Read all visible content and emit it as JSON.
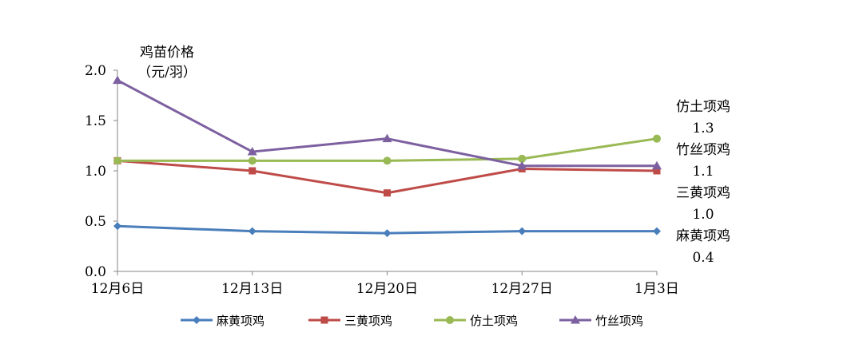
{
  "chart_data": {
    "type": "line",
    "title": "",
    "ylabel": [
      "鸡苗价格",
      "（元/羽）"
    ],
    "xlabel": "",
    "categories": [
      "12月6日",
      "12月13日",
      "12月20日",
      "12月27日",
      "1月3日"
    ],
    "ylim": [
      0,
      2.0
    ],
    "yticks": [
      "0.0",
      "0.5",
      "1.0",
      "1.5",
      "2.0"
    ],
    "grid": false,
    "legend_position": "bottom",
    "series": [
      {
        "name": "麻黄项鸡",
        "color": "#4a7ebb",
        "marker": "diamond",
        "values": [
          0.45,
          0.4,
          0.38,
          0.4,
          0.4
        ]
      },
      {
        "name": "三黄项鸡",
        "color": "#be4b48",
        "marker": "square",
        "values": [
          1.1,
          1.0,
          0.78,
          1.02,
          1.0
        ]
      },
      {
        "name": "仿土项鸡",
        "color": "#98b954",
        "marker": "circle",
        "values": [
          1.1,
          1.1,
          1.1,
          1.12,
          1.32
        ]
      },
      {
        "name": "竹丝项鸡",
        "color": "#7d60a0",
        "marker": "triangle",
        "values": [
          1.9,
          1.19,
          1.32,
          1.05,
          1.05
        ]
      }
    ],
    "annotations": [
      {
        "name": "仿土项鸡",
        "value": "1.3"
      },
      {
        "name": "竹丝项鸡",
        "value": "1.1"
      },
      {
        "name": "三黄项鸡",
        "value": "1.0"
      },
      {
        "name": "麻黄项鸡",
        "value": "0.4"
      }
    ]
  }
}
